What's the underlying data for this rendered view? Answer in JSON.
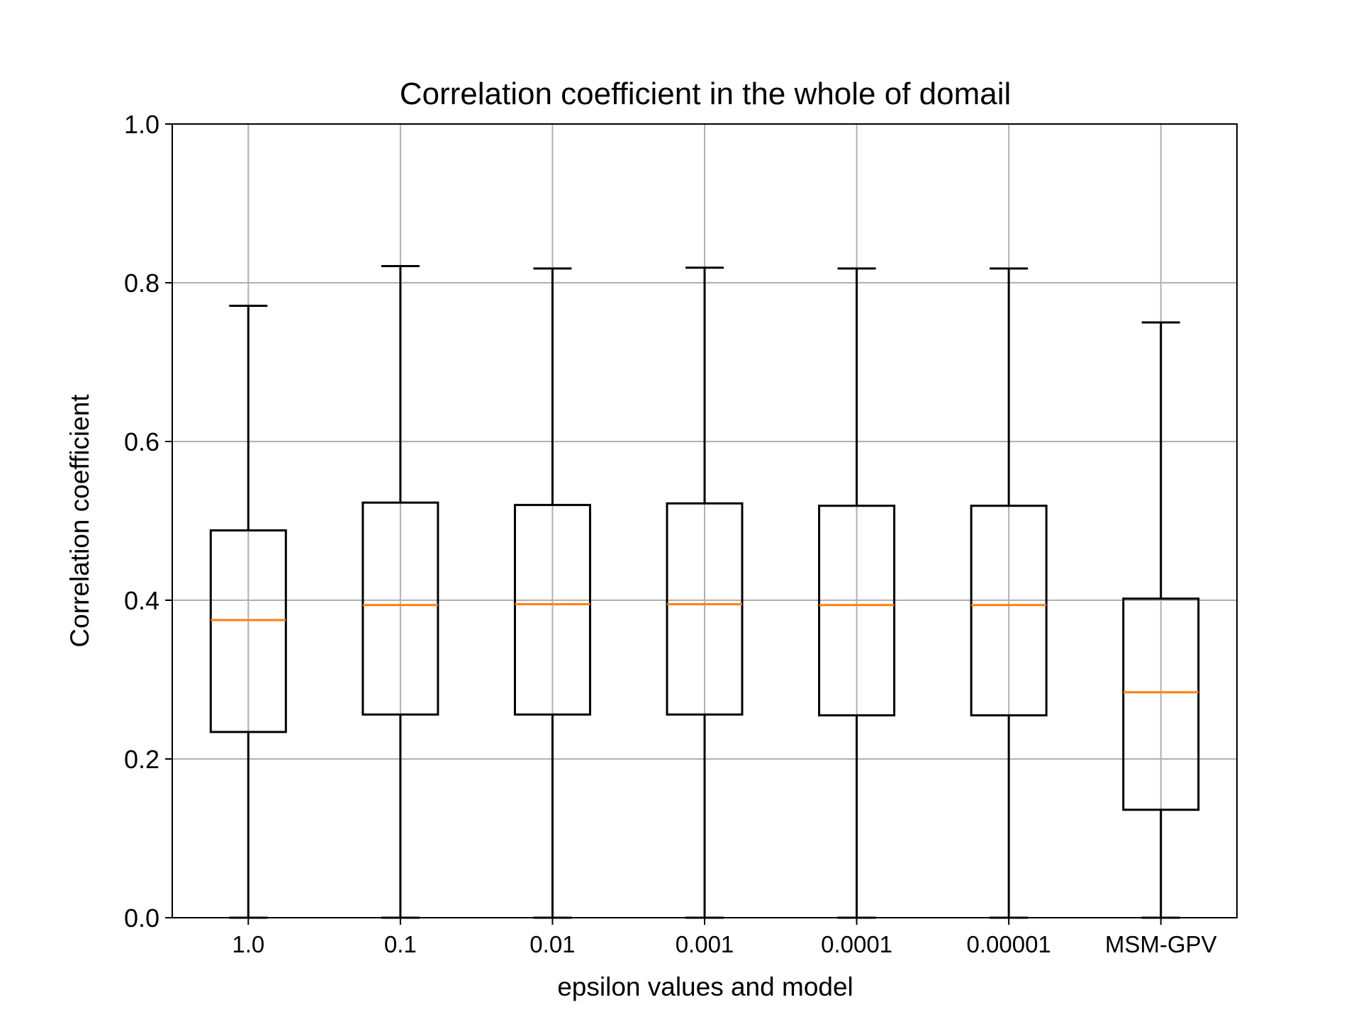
{
  "chart_data": {
    "type": "box",
    "title": "Correlation coefficient in the whole of domail",
    "xlabel": "epsilon values and model",
    "ylabel": "Correlation coefficient",
    "ylim": [
      0.0,
      1.0
    ],
    "yticks": [
      0.0,
      0.2,
      0.4,
      0.6,
      0.8,
      1.0
    ],
    "ytick_labels": [
      "0.0",
      "0.2",
      "0.4",
      "0.6",
      "0.8",
      "1.0"
    ],
    "grid": true,
    "categories": [
      "1.0",
      "0.1",
      "0.01",
      "0.001",
      "0.0001",
      "0.00001",
      "MSM-GPV"
    ],
    "boxes": [
      {
        "label": "1.0",
        "whisker_low": 0.0,
        "q1": 0.234,
        "median": 0.375,
        "q3": 0.488,
        "whisker_high": 0.771
      },
      {
        "label": "0.1",
        "whisker_low": 0.0,
        "q1": 0.256,
        "median": 0.394,
        "q3": 0.523,
        "whisker_high": 0.821
      },
      {
        "label": "0.01",
        "whisker_low": 0.0,
        "q1": 0.256,
        "median": 0.395,
        "q3": 0.52,
        "whisker_high": 0.818
      },
      {
        "label": "0.001",
        "whisker_low": 0.0,
        "q1": 0.256,
        "median": 0.395,
        "q3": 0.522,
        "whisker_high": 0.819
      },
      {
        "label": "0.0001",
        "whisker_low": 0.0,
        "q1": 0.255,
        "median": 0.394,
        "q3": 0.519,
        "whisker_high": 0.818
      },
      {
        "label": "0.00001",
        "whisker_low": 0.0,
        "q1": 0.255,
        "median": 0.394,
        "q3": 0.519,
        "whisker_high": 0.818
      },
      {
        "label": "MSM-GPV",
        "whisker_low": 0.0,
        "q1": 0.136,
        "median": 0.284,
        "q3": 0.402,
        "whisker_high": 0.75
      }
    ],
    "colors": {
      "box": "#000000",
      "median": "#ff7f0e",
      "grid": "#b0b0b0",
      "axes": "#000000"
    }
  }
}
